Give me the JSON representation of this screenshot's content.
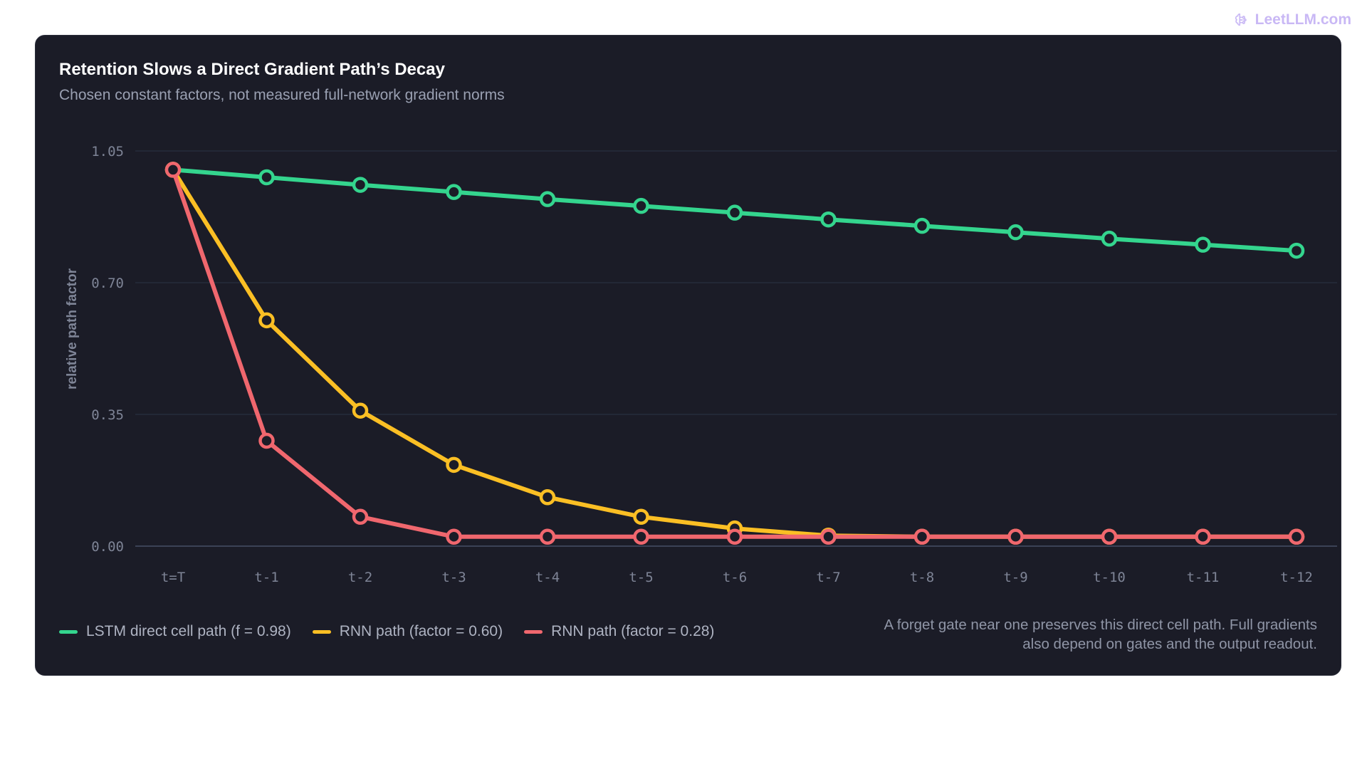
{
  "watermark": {
    "text": "LeetLLM.com",
    "icon": "brain-icon",
    "color": "#c9b8f5"
  },
  "card": {
    "background": "#1b1c27"
  },
  "chart_data": {
    "type": "line",
    "title": "Retention Slows a Direct Gradient Path’s Decay",
    "subtitle": "Chosen constant factors, not measured full-network gradient norms",
    "xlabel": "",
    "ylabel": "relative path factor",
    "categories": [
      "t=T",
      "t-1",
      "t-2",
      "t-3",
      "t-4",
      "t-5",
      "t-6",
      "t-7",
      "t-8",
      "t-9",
      "t-10",
      "t-11",
      "t-12"
    ],
    "ylim": [
      0,
      1.05
    ],
    "yticks": [
      "1.05",
      "0.70",
      "0.35",
      "0.00"
    ],
    "grid": true,
    "legend_position": "bottom-left",
    "series": [
      {
        "name": "LSTM direct cell path (f = 0.98)",
        "color": "#34d58e",
        "values": [
          1.0,
          0.98,
          0.96,
          0.941,
          0.922,
          0.904,
          0.886,
          0.868,
          0.851,
          0.834,
          0.817,
          0.801,
          0.785
        ]
      },
      {
        "name": "RNN path (factor = 0.60)",
        "color": "#fbbf24",
        "values": [
          1.0,
          0.6,
          0.36,
          0.216,
          0.13,
          0.078,
          0.047,
          0.028,
          0.025,
          0.025,
          0.025,
          0.025,
          0.025
        ]
      },
      {
        "name": "RNN path (factor = 0.28)",
        "color": "#f0676e",
        "values": [
          1.0,
          0.28,
          0.078,
          0.025,
          0.025,
          0.025,
          0.025,
          0.025,
          0.025,
          0.025,
          0.025,
          0.025,
          0.025
        ]
      }
    ],
    "annotation_lines": [
      "A forget gate near one preserves this direct cell path. Full gradients",
      "also depend on gates and the output readout."
    ]
  },
  "colors": {
    "grid": "#283040",
    "axis": "#3b4256",
    "tick_text": "#7e8496",
    "ylabel_text": "#7e8496"
  }
}
